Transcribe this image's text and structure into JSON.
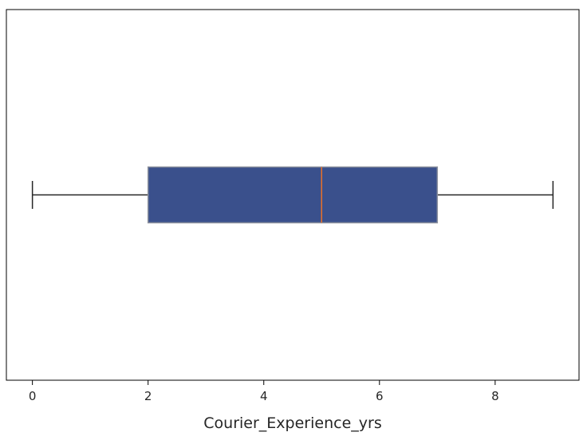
{
  "chart_data": {
    "type": "boxplot",
    "orientation": "horizontal",
    "xlabel": "Courier_Experience_yrs",
    "ylabel": "",
    "title": "",
    "xlim": [
      -0.45,
      9.45
    ],
    "xticks": [
      0,
      2,
      4,
      6,
      8
    ],
    "xtick_labels": [
      "0",
      "2",
      "4",
      "6",
      "8"
    ],
    "grid": false,
    "box": {
      "whisker_low": 0,
      "q1": 2,
      "median": 5,
      "q3": 7,
      "whisker_high": 9
    },
    "colors": {
      "box_fill": "#3a508c",
      "box_edge": "#8a8f9c",
      "median_line": "#e8702a",
      "whisker": "#262626",
      "frame": "#000000"
    }
  }
}
